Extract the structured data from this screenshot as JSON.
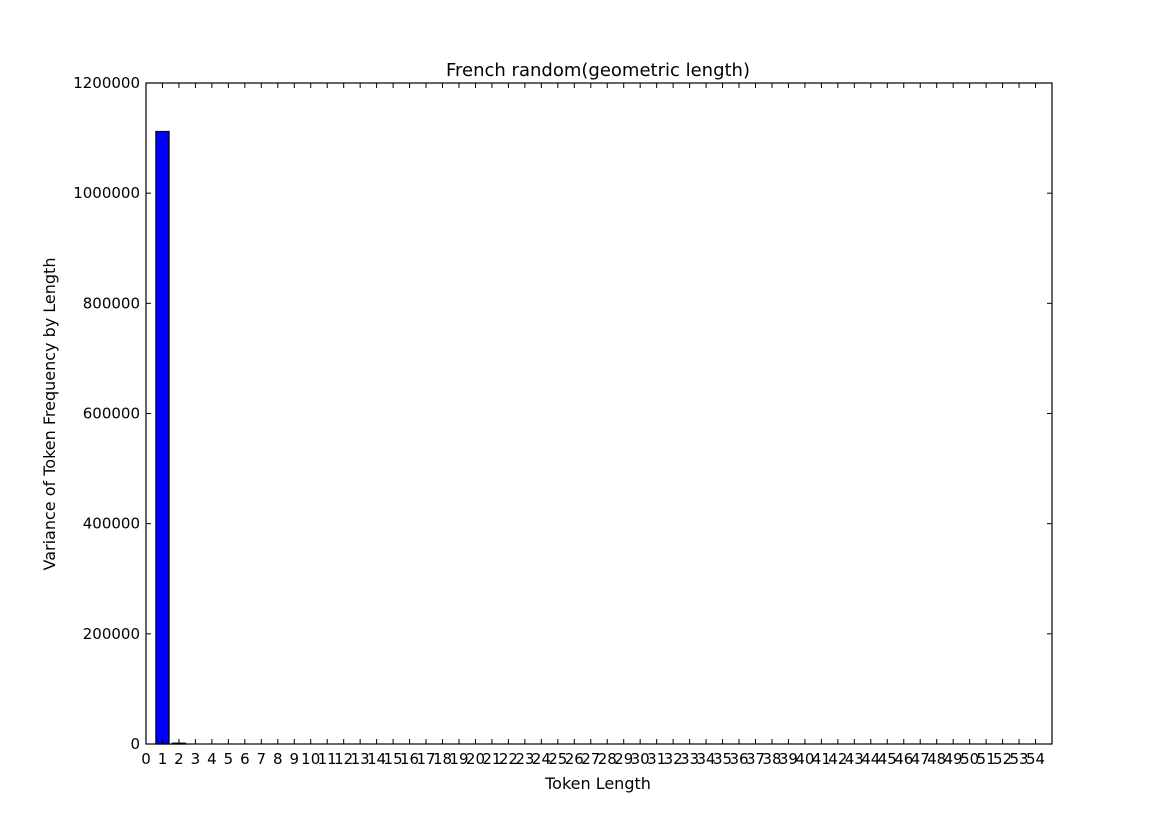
{
  "chart_data": {
    "type": "bar",
    "title": "French random(geometric length)",
    "xlabel": "Token Length",
    "ylabel": "Variance of Token Frequency by Length",
    "xlim": [
      0,
      55
    ],
    "ylim": [
      0,
      1200000
    ],
    "x_ticks": [
      0,
      1,
      2,
      3,
      4,
      5,
      6,
      7,
      8,
      9,
      10,
      11,
      12,
      13,
      14,
      15,
      16,
      17,
      18,
      19,
      20,
      21,
      22,
      23,
      24,
      25,
      26,
      27,
      28,
      29,
      30,
      31,
      32,
      33,
      34,
      35,
      36,
      37,
      38,
      39,
      40,
      41,
      42,
      43,
      44,
      45,
      46,
      47,
      48,
      49,
      50,
      51,
      52,
      53,
      54
    ],
    "y_ticks": [
      0,
      200000,
      400000,
      600000,
      800000,
      1000000,
      1200000
    ],
    "bar_width": 0.8,
    "bar_color": "#0000ff",
    "grid": false,
    "bars": [
      {
        "x": 1,
        "value": 1112000
      },
      {
        "x": 2,
        "value": 1500
      },
      {
        "x": 3,
        "value": 0
      }
    ]
  }
}
